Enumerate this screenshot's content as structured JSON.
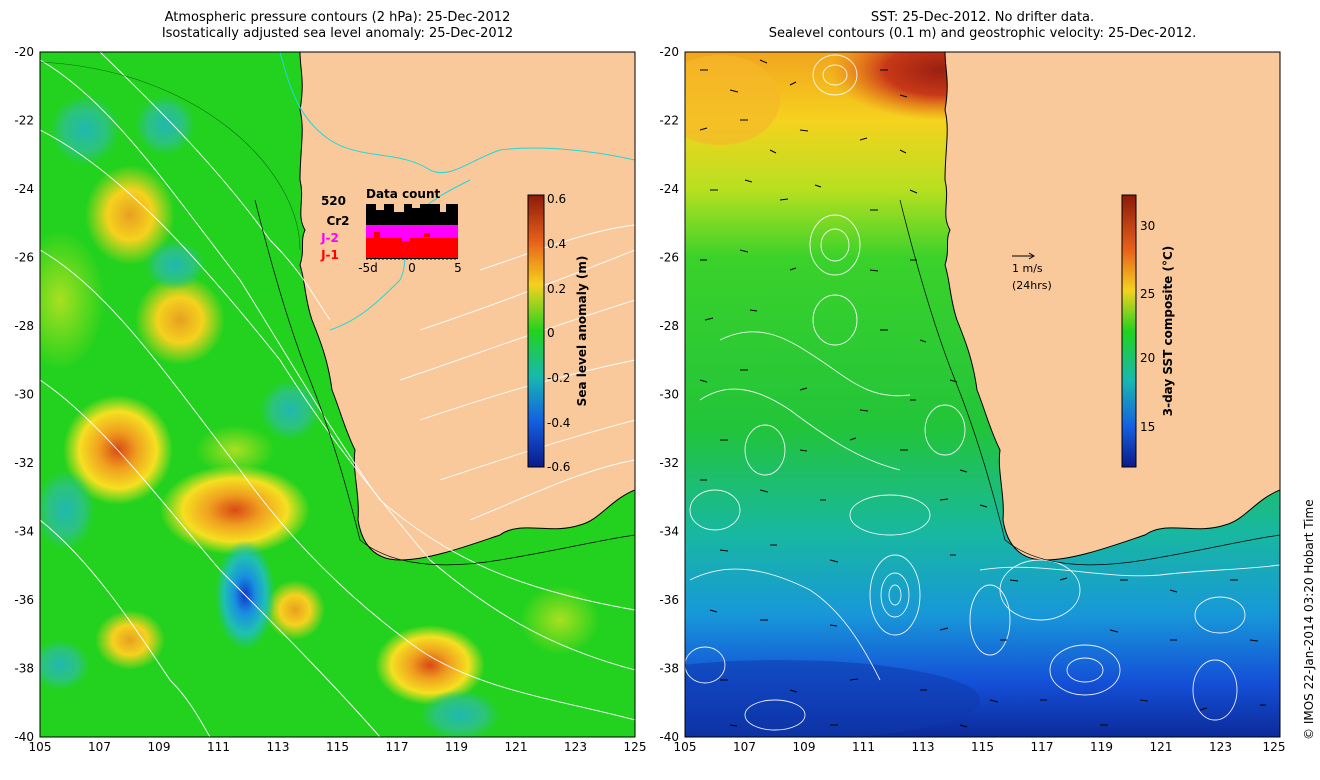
{
  "left_panel": {
    "title_line1": "Atmospheric pressure contours (2 hPa): 25-Dec-2012",
    "title_line2": "Isostatically adjusted sea level anomaly: 25-Dec-2012",
    "colorbar_label": "Sea level anomaly (m)",
    "colorbar_ticks": [
      "0.6",
      "0.4",
      "0.2",
      "0",
      "-0.2",
      "-0.4",
      "-0.6"
    ],
    "inset": {
      "title": "Data count",
      "count": "520",
      "series": [
        "Cr2",
        "J-2",
        "J-1"
      ],
      "series_colors": {
        "Cr2": "#000000",
        "J-2": "#ff00ff",
        "J-1": "#ff0000"
      },
      "x_ticks": [
        "-5d",
        "0",
        "5"
      ]
    }
  },
  "right_panel": {
    "title_line1": "SST: 25-Dec-2012. No drifter data.",
    "title_line2": "Sealevel contours (0.1 m) and geostrophic velocity: 25-Dec-2012.",
    "colorbar_label": "3-day SST composite (°C)",
    "colorbar_ticks": [
      "30",
      "25",
      "20",
      "15"
    ],
    "vector_scale_label": "1 m/s",
    "vector_scale_sub": "(24hrs)"
  },
  "axes": {
    "x_ticks": [
      "105",
      "107",
      "109",
      "111",
      "113",
      "115",
      "117",
      "119",
      "121",
      "123",
      "125"
    ],
    "y_ticks": [
      "-20",
      "-22",
      "-24",
      "-26",
      "-28",
      "-30",
      "-32",
      "-34",
      "-36",
      "-38",
      "-40"
    ],
    "x_range": [
      105,
      125
    ],
    "y_range": [
      -40,
      -20
    ]
  },
  "credit": "© IMOS 22-Jan-2014 03:20 Hobart Time",
  "colors": {
    "land": "#f9c89b",
    "coast": "#000000",
    "pressure_contour": "#ffffff",
    "sst_warm": "#b22a14",
    "sst_cool": "#1f3cc4",
    "anomaly_neutral": "#22d21e"
  }
}
